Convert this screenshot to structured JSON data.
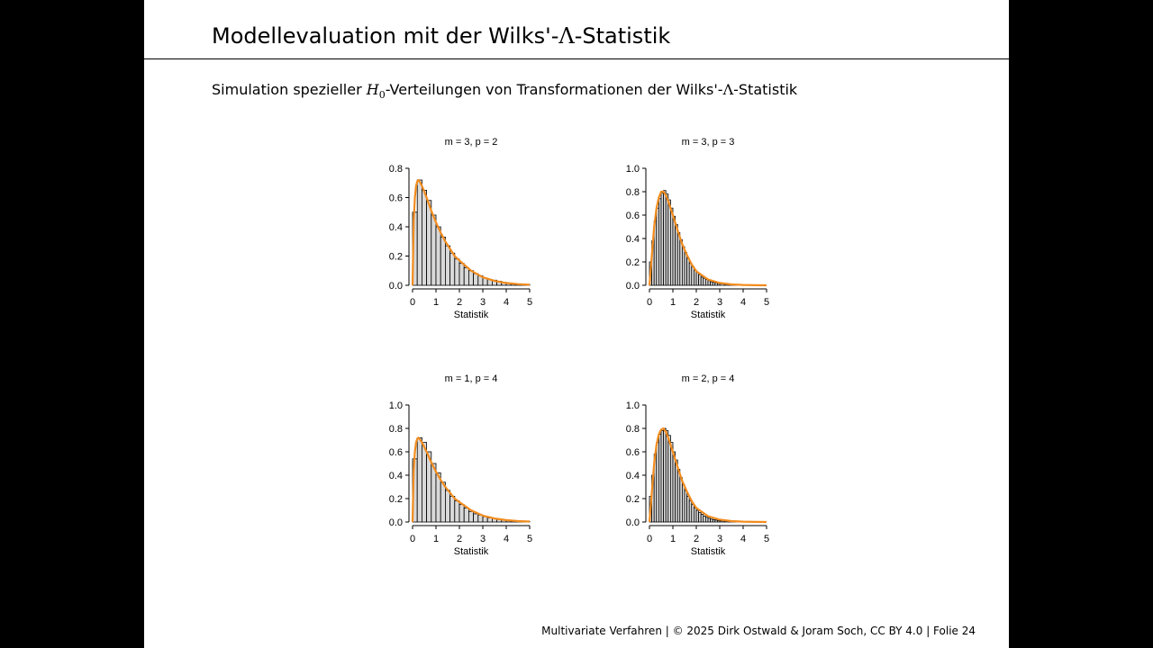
{
  "slide": {
    "title_prefix": "Modellevaluation mit der Wilks'-",
    "title_symbol": "Λ",
    "title_suffix": "-Statistik",
    "subtitle_pre": "Simulation spezieller ",
    "subtitle_h": "H",
    "subtitle_h_sub": "0",
    "subtitle_mid": "-Verteilungen von Transformationen der Wilks'-",
    "subtitle_symbol": "Λ",
    "subtitle_post": "-Statistik",
    "footer": "Multivariate Verfahren | © 2025 Dirk Ostwald & Joram Soch, CC BY 4.0 | Folie 24"
  },
  "colors": {
    "background": "#ffffff",
    "frame": "#000000",
    "bar_fill": "#d9d9d9",
    "bar_stroke": "#000000",
    "density_line": "#f28c1e"
  },
  "chart_data": [
    {
      "type": "bar",
      "title": "m = 3, p = 2",
      "xlabel": "Statistik",
      "ylabel": "",
      "xlim": [
        0,
        5
      ],
      "ylim": [
        0,
        0.8
      ],
      "xticks": [
        0,
        1,
        2,
        3,
        4,
        5
      ],
      "yticks": [
        0.0,
        0.2,
        0.4,
        0.6,
        0.8
      ],
      "ytick_labels": [
        "0.0",
        "0.2",
        "0.4",
        "0.6",
        "0.8"
      ],
      "bin_width": 0.2,
      "bin_starts": [
        0,
        0.2,
        0.4,
        0.6,
        0.8,
        1.0,
        1.2,
        1.4,
        1.6,
        1.8,
        2.0,
        2.2,
        2.4,
        2.6,
        2.8,
        3.0,
        3.2,
        3.4,
        3.6,
        3.8,
        4.0,
        4.2,
        4.4,
        4.6,
        4.8
      ],
      "values": [
        0.5,
        0.72,
        0.65,
        0.58,
        0.48,
        0.4,
        0.33,
        0.27,
        0.22,
        0.18,
        0.15,
        0.12,
        0.1,
        0.08,
        0.065,
        0.05,
        0.04,
        0.035,
        0.028,
        0.02,
        0.016,
        0.012,
        0.01,
        0.008,
        0.006
      ],
      "density_x": [
        0,
        0.05,
        0.1,
        0.15,
        0.2,
        0.25,
        0.3,
        0.4,
        0.5,
        0.6,
        0.8,
        1.0,
        1.2,
        1.4,
        1.6,
        1.8,
        2.0,
        2.5,
        3.0,
        3.5,
        4.0,
        4.5,
        5.0
      ],
      "density_y": [
        0,
        0.45,
        0.6,
        0.68,
        0.71,
        0.72,
        0.71,
        0.68,
        0.64,
        0.6,
        0.51,
        0.43,
        0.36,
        0.3,
        0.25,
        0.2,
        0.17,
        0.1,
        0.055,
        0.03,
        0.016,
        0.008,
        0.004
      ]
    },
    {
      "type": "bar",
      "title": "m = 3, p = 3",
      "xlabel": "Statistik",
      "ylabel": "",
      "xlim": [
        0,
        5
      ],
      "ylim": [
        0,
        1.0
      ],
      "xticks": [
        0,
        1,
        2,
        3,
        4,
        5
      ],
      "yticks": [
        0.0,
        0.2,
        0.4,
        0.6,
        0.8,
        1.0
      ],
      "ytick_labels": [
        "0.0",
        "0.2",
        "0.4",
        "0.6",
        "0.8",
        "1.0"
      ],
      "bin_width": 0.1,
      "bin_starts": [
        0,
        0.1,
        0.2,
        0.3,
        0.4,
        0.5,
        0.6,
        0.7,
        0.8,
        0.9,
        1.0,
        1.1,
        1.2,
        1.3,
        1.4,
        1.5,
        1.6,
        1.7,
        1.8,
        1.9,
        2.0,
        2.1,
        2.2,
        2.3,
        2.4,
        2.5,
        2.6,
        2.7,
        2.8,
        2.9,
        3.0,
        3.2,
        3.4,
        3.6,
        3.8,
        4.0
      ],
      "values": [
        0.2,
        0.38,
        0.55,
        0.66,
        0.74,
        0.79,
        0.81,
        0.78,
        0.73,
        0.66,
        0.59,
        0.52,
        0.45,
        0.39,
        0.33,
        0.28,
        0.23,
        0.19,
        0.16,
        0.13,
        0.11,
        0.09,
        0.07,
        0.06,
        0.05,
        0.04,
        0.03,
        0.025,
        0.02,
        0.015,
        0.012,
        0.009,
        0.006,
        0.004,
        0.003,
        0.002
      ],
      "density_x": [
        0,
        0.1,
        0.2,
        0.3,
        0.4,
        0.5,
        0.6,
        0.7,
        0.8,
        1.0,
        1.2,
        1.4,
        1.6,
        1.8,
        2.0,
        2.5,
        3.0,
        3.5,
        4.0,
        4.5,
        5.0
      ],
      "density_y": [
        0,
        0.25,
        0.5,
        0.66,
        0.75,
        0.8,
        0.8,
        0.77,
        0.72,
        0.6,
        0.47,
        0.35,
        0.26,
        0.18,
        0.12,
        0.05,
        0.02,
        0.008,
        0.003,
        0.001,
        0
      ]
    },
    {
      "type": "bar",
      "title": "m = 1, p = 4",
      "xlabel": "Statistik",
      "ylabel": "",
      "xlim": [
        0,
        5
      ],
      "ylim": [
        0,
        1.0
      ],
      "xticks": [
        0,
        1,
        2,
        3,
        4,
        5
      ],
      "yticks": [
        0.0,
        0.2,
        0.4,
        0.6,
        0.8,
        1.0
      ],
      "ytick_labels": [
        "0.0",
        "0.2",
        "0.4",
        "0.6",
        "0.8",
        "1.0"
      ],
      "bin_width": 0.2,
      "bin_starts": [
        0,
        0.2,
        0.4,
        0.6,
        0.8,
        1.0,
        1.2,
        1.4,
        1.6,
        1.8,
        2.0,
        2.2,
        2.4,
        2.6,
        2.8,
        3.0,
        3.2,
        3.4,
        3.6,
        3.8,
        4.0,
        4.2,
        4.4,
        4.6,
        4.8
      ],
      "values": [
        0.54,
        0.72,
        0.68,
        0.6,
        0.5,
        0.42,
        0.34,
        0.27,
        0.22,
        0.18,
        0.15,
        0.12,
        0.09,
        0.07,
        0.06,
        0.045,
        0.035,
        0.03,
        0.022,
        0.017,
        0.013,
        0.01,
        0.008,
        0.006,
        0.005
      ],
      "density_x": [
        0,
        0.05,
        0.1,
        0.15,
        0.2,
        0.25,
        0.3,
        0.4,
        0.5,
        0.6,
        0.8,
        1.0,
        1.2,
        1.4,
        1.6,
        1.8,
        2.0,
        2.5,
        3.0,
        3.5,
        4.0,
        4.5,
        5.0
      ],
      "density_y": [
        0,
        0.45,
        0.6,
        0.68,
        0.71,
        0.72,
        0.71,
        0.68,
        0.64,
        0.6,
        0.51,
        0.43,
        0.36,
        0.3,
        0.25,
        0.2,
        0.17,
        0.1,
        0.055,
        0.03,
        0.016,
        0.008,
        0.004
      ]
    },
    {
      "type": "bar",
      "title": "m = 2, p = 4",
      "xlabel": "Statistik",
      "ylabel": "",
      "xlim": [
        0,
        5
      ],
      "ylim": [
        0,
        1.0
      ],
      "xticks": [
        0,
        1,
        2,
        3,
        4,
        5
      ],
      "yticks": [
        0.0,
        0.2,
        0.4,
        0.6,
        0.8,
        1.0
      ],
      "ytick_labels": [
        "0.0",
        "0.2",
        "0.4",
        "0.6",
        "0.8",
        "1.0"
      ],
      "bin_width": 0.1,
      "bin_starts": [
        0,
        0.1,
        0.2,
        0.3,
        0.4,
        0.5,
        0.6,
        0.7,
        0.8,
        0.9,
        1.0,
        1.1,
        1.2,
        1.3,
        1.4,
        1.5,
        1.6,
        1.7,
        1.8,
        1.9,
        2.0,
        2.1,
        2.2,
        2.3,
        2.4,
        2.5,
        2.6,
        2.7,
        2.8,
        2.9,
        3.0,
        3.2,
        3.4,
        3.6,
        3.8,
        4.0
      ],
      "values": [
        0.22,
        0.4,
        0.58,
        0.68,
        0.75,
        0.78,
        0.8,
        0.78,
        0.74,
        0.68,
        0.6,
        0.53,
        0.45,
        0.38,
        0.32,
        0.27,
        0.22,
        0.18,
        0.15,
        0.12,
        0.1,
        0.08,
        0.065,
        0.05,
        0.04,
        0.032,
        0.025,
        0.02,
        0.016,
        0.012,
        0.009,
        0.007,
        0.005,
        0.003,
        0.002,
        0.001
      ],
      "density_x": [
        0,
        0.1,
        0.2,
        0.3,
        0.4,
        0.5,
        0.6,
        0.7,
        0.8,
        1.0,
        1.2,
        1.4,
        1.6,
        1.8,
        2.0,
        2.5,
        3.0,
        3.5,
        4.0,
        4.5,
        5.0
      ],
      "density_y": [
        0,
        0.25,
        0.5,
        0.66,
        0.75,
        0.79,
        0.8,
        0.77,
        0.72,
        0.6,
        0.47,
        0.35,
        0.26,
        0.18,
        0.12,
        0.05,
        0.02,
        0.008,
        0.003,
        0.001,
        0
      ]
    }
  ]
}
